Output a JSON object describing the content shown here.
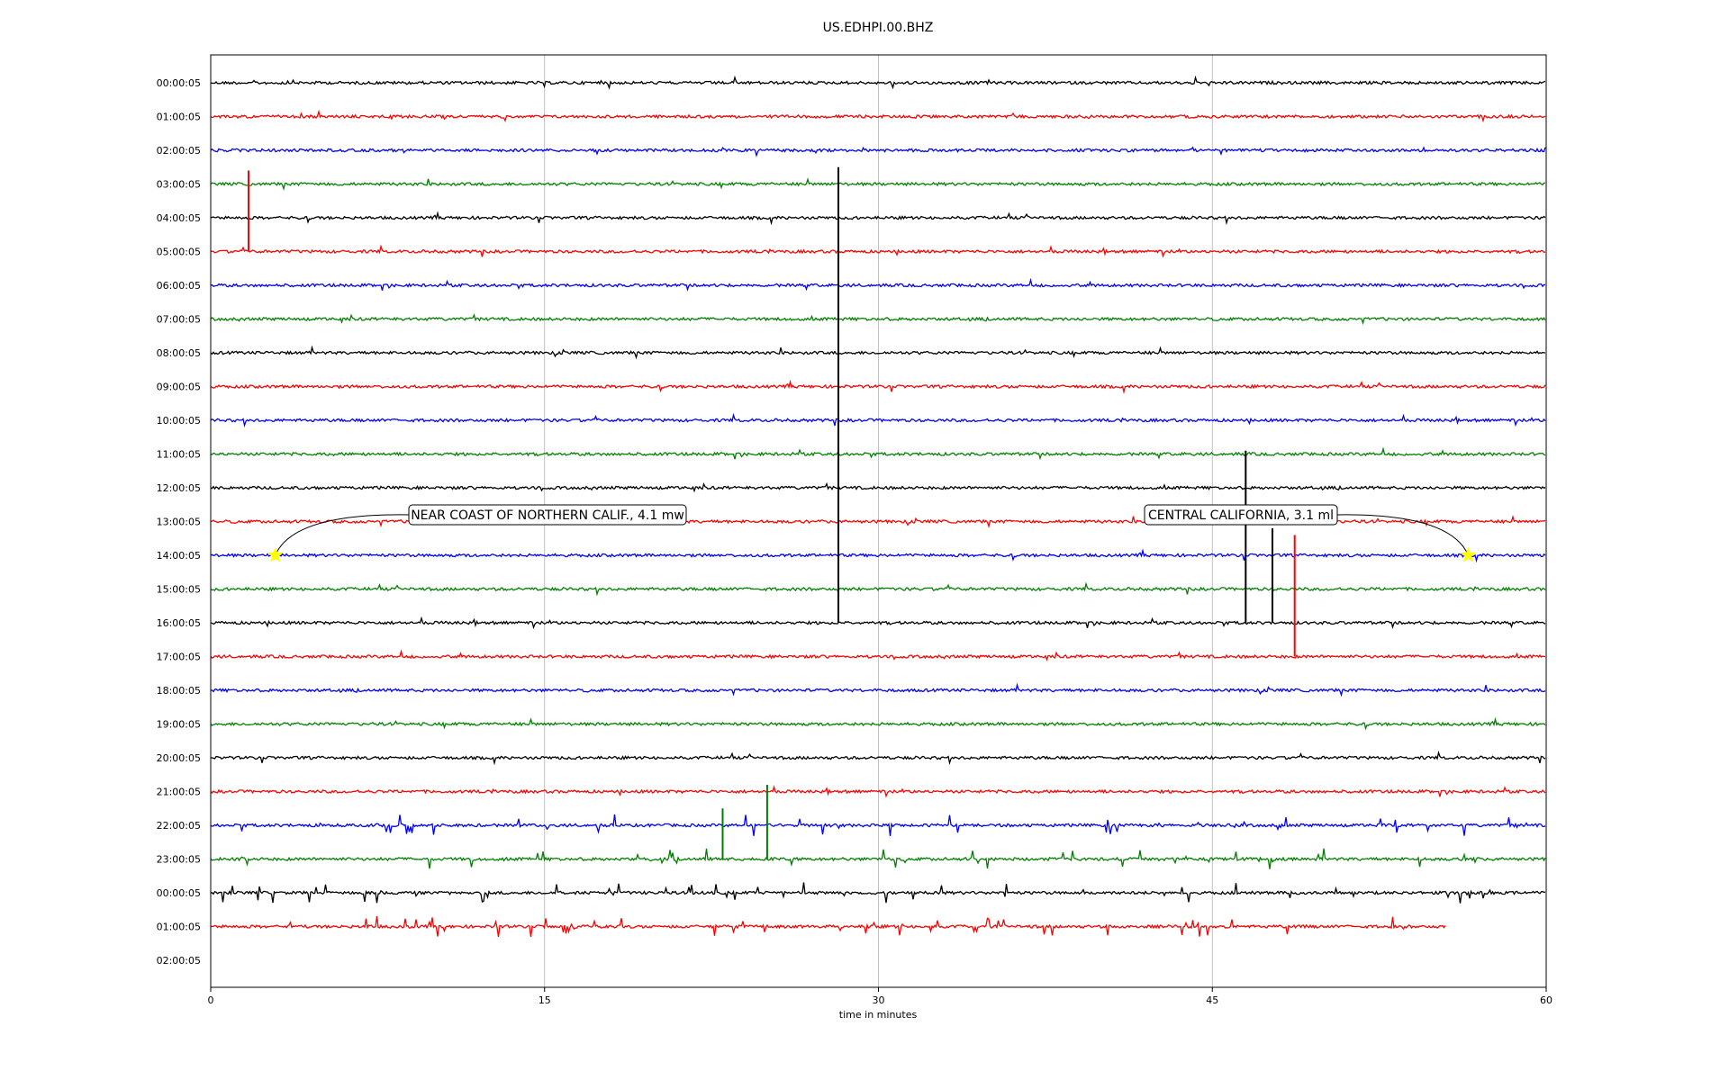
{
  "chart_data": {
    "type": "line",
    "title": "US.EDHPI.00.BHZ",
    "xlabel": "time in minutes",
    "ylabel": "",
    "xlim": [
      0,
      60
    ],
    "x_ticks": [
      0,
      15,
      30,
      45,
      60
    ],
    "grid": "vertical lines at x ticks",
    "row_labels": [
      "00:00:05",
      "01:00:05",
      "02:00:05",
      "03:00:05",
      "04:00:05",
      "05:00:05",
      "06:00:05",
      "07:00:05",
      "08:00:05",
      "09:00:05",
      "10:00:05",
      "11:00:05",
      "12:00:05",
      "13:00:05",
      "14:00:05",
      "15:00:05",
      "16:00:05",
      "17:00:05",
      "18:00:05",
      "19:00:05",
      "20:00:05",
      "21:00:05",
      "22:00:05",
      "23:00:05",
      "00:00:05",
      "01:00:05",
      "02:00:05"
    ],
    "trace_colors": [
      "#000000",
      "#ff0000",
      "#0000ff",
      "#008000"
    ],
    "trace_end_minutes": [
      60,
      60,
      60,
      60,
      60,
      60,
      60,
      60,
      60,
      60,
      60,
      60,
      60,
      60,
      60,
      60,
      60,
      60,
      60,
      60,
      60,
      60,
      60,
      60,
      60,
      55.5
    ],
    "big_spikes": [
      {
        "trace": 16,
        "x": 28.2,
        "span_rows": 13.5
      },
      {
        "trace": 16,
        "x": 46.5,
        "span_rows": 5.1
      },
      {
        "trace": 16,
        "x": 47.7,
        "span_rows": 2.8
      },
      {
        "trace": 17,
        "x": 48.7,
        "span_rows": 3.6
      },
      {
        "trace": 5,
        "x": 1.7,
        "span_rows": 2.4
      },
      {
        "trace": 23,
        "x": 23.0,
        "span_rows": 1.5
      },
      {
        "trace": 23,
        "x": 25.0,
        "span_rows": 2.2
      }
    ],
    "annotations": [
      {
        "text": "NEAR COAST OF NORTHERN CALIF., 4.1 mw",
        "marker_x": 2.9,
        "marker_row": 14,
        "marker_color": "#ffff00"
      },
      {
        "text": "CENTRAL CALIFORNIA, 3.1 ml",
        "marker_x": 56.5,
        "marker_row": 14,
        "marker_color": "#ffff00"
      }
    ]
  }
}
